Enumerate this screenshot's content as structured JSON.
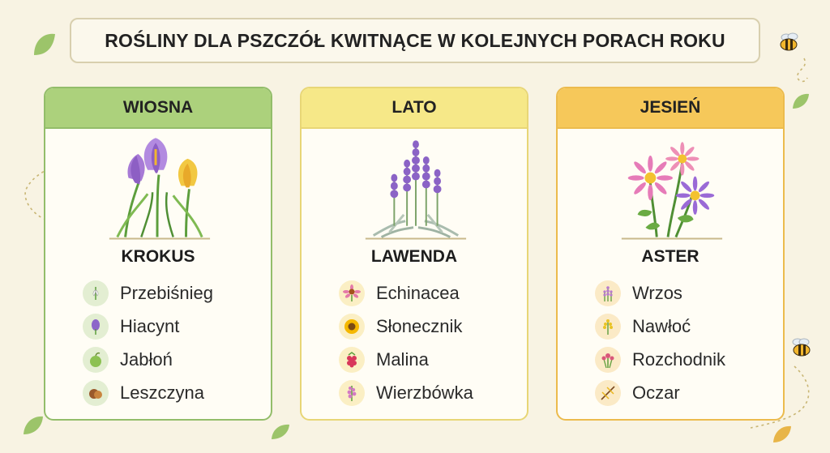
{
  "title": "ROŚLINY DLA PSZCZÓŁ KWITNĄCE W KOLEJNYCH PORACH ROKU",
  "seasons": [
    {
      "season": "WIOSNA",
      "featured": "KROKUS",
      "color": "#acd17c",
      "plants": [
        "Przebiśnieg",
        "Hiacynt",
        "Jabłoń",
        "Leszczyna"
      ],
      "plant_icons": [
        "snowdrop-icon",
        "hyacinth-icon",
        "apple-icon",
        "hazelnut-icon"
      ]
    },
    {
      "season": "LATO",
      "featured": "LAWENDA",
      "color": "#f6e888",
      "plants": [
        "Echinacea",
        "Słonecznik",
        "Malina",
        "Wierzbówka"
      ],
      "plant_icons": [
        "coneflower-icon",
        "sunflower-icon",
        "raspberry-icon",
        "fireweed-icon"
      ]
    },
    {
      "season": "JESIEŃ",
      "featured": "ASTER",
      "color": "#f6c85a",
      "plants": [
        "Wrzos",
        "Nawłoć",
        "Rozchodnik",
        "Oczar"
      ],
      "plant_icons": [
        "heather-icon",
        "goldenrod-icon",
        "sedum-icon",
        "witch-hazel-icon"
      ]
    }
  ]
}
